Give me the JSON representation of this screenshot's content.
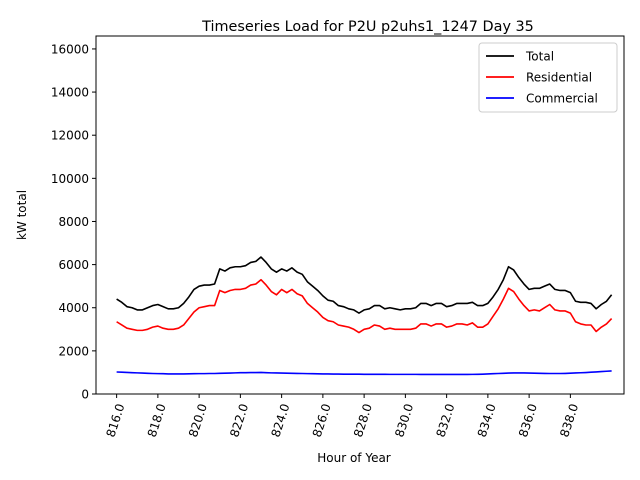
{
  "chart_data": {
    "type": "line",
    "title": "Timeseries Load for P2U p2uhs1_1247  Day 35",
    "xlabel": "Hour of Year",
    "ylabel": "kW total",
    "xlim": [
      815.0,
      840.6
    ],
    "ylim": [
      0,
      16600
    ],
    "xticks": [
      816.0,
      818.0,
      820.0,
      822.0,
      824.0,
      826.0,
      828.0,
      830.0,
      832.0,
      834.0,
      836.0,
      838.0
    ],
    "xtick_labels": [
      "816.0",
      "818.0",
      "820.0",
      "822.0",
      "824.0",
      "826.0",
      "828.0",
      "830.0",
      "832.0",
      "834.0",
      "836.0",
      "838.0"
    ],
    "yticks": [
      0,
      2000,
      4000,
      6000,
      8000,
      10000,
      12000,
      14000,
      16000
    ],
    "ytick_labels": [
      "0",
      "2000",
      "4000",
      "6000",
      "8000",
      "10000",
      "12000",
      "14000",
      "16000"
    ],
    "legend_position": "top-right",
    "x_start": 816.0,
    "x_step": 0.25,
    "series": [
      {
        "name": "Total",
        "color": "#000000",
        "values": [
          4400,
          4250,
          4050,
          4000,
          3900,
          3900,
          4000,
          4100,
          4150,
          4050,
          3950,
          3950,
          4000,
          4200,
          4500,
          4850,
          5000,
          5050,
          5050,
          5100,
          5800,
          5700,
          5850,
          5900,
          5900,
          5950,
          6100,
          6150,
          6350,
          6100,
          5800,
          5650,
          5800,
          5700,
          5850,
          5650,
          5550,
          5200,
          5000,
          4800,
          4550,
          4350,
          4300,
          4100,
          4050,
          3950,
          3900,
          3750,
          3900,
          3950,
          4100,
          4100,
          3950,
          4000,
          3950,
          3900,
          3950,
          3950,
          4000,
          4200,
          4200,
          4100,
          4200,
          4200,
          4050,
          4100,
          4200,
          4200,
          4200,
          4250,
          4100,
          4100,
          4200,
          4500,
          4850,
          5300,
          5900,
          5750,
          5400,
          5100,
          4850,
          4900,
          4900,
          5000,
          5100,
          4850,
          4800,
          4800,
          4700,
          4300,
          4250,
          4250,
          4200,
          3950,
          4150,
          4300,
          4600
        ]
      },
      {
        "name": "Residential",
        "color": "#ff0000",
        "values": [
          3350,
          3200,
          3050,
          3000,
          2950,
          2950,
          3000,
          3100,
          3150,
          3050,
          3000,
          3000,
          3050,
          3200,
          3500,
          3800,
          4000,
          4050,
          4100,
          4100,
          4800,
          4700,
          4800,
          4850,
          4850,
          4900,
          5050,
          5100,
          5300,
          5050,
          4750,
          4600,
          4850,
          4700,
          4850,
          4650,
          4550,
          4200,
          4000,
          3800,
          3550,
          3400,
          3350,
          3200,
          3150,
          3100,
          3000,
          2850,
          3000,
          3050,
          3200,
          3150,
          3000,
          3050,
          3000,
          3000,
          3000,
          3000,
          3050,
          3250,
          3250,
          3150,
          3250,
          3250,
          3100,
          3150,
          3250,
          3250,
          3200,
          3300,
          3100,
          3100,
          3250,
          3600,
          3950,
          4400,
          4900,
          4750,
          4400,
          4100,
          3850,
          3900,
          3850,
          4000,
          4150,
          3900,
          3850,
          3850,
          3750,
          3350,
          3250,
          3200,
          3200,
          2900,
          3100,
          3250,
          3500
        ]
      },
      {
        "name": "Commercial",
        "color": "#0000ff",
        "values": [
          1020,
          1010,
          1000,
          990,
          980,
          970,
          960,
          950,
          945,
          940,
          930,
          930,
          930,
          930,
          935,
          940,
          945,
          945,
          950,
          950,
          960,
          965,
          970,
          980,
          990,
          990,
          995,
          995,
          1000,
          990,
          980,
          975,
          970,
          965,
          960,
          955,
          950,
          945,
          940,
          935,
          930,
          930,
          925,
          925,
          920,
          920,
          920,
          920,
          915,
          915,
          915,
          915,
          915,
          910,
          910,
          910,
          910,
          910,
          910,
          905,
          905,
          905,
          905,
          905,
          905,
          905,
          905,
          905,
          905,
          910,
          915,
          920,
          930,
          940,
          950,
          960,
          970,
          975,
          975,
          975,
          970,
          965,
          960,
          955,
          950,
          950,
          950,
          955,
          965,
          975,
          985,
          995,
          1010,
          1025,
          1040,
          1055,
          1070
        ]
      }
    ]
  }
}
